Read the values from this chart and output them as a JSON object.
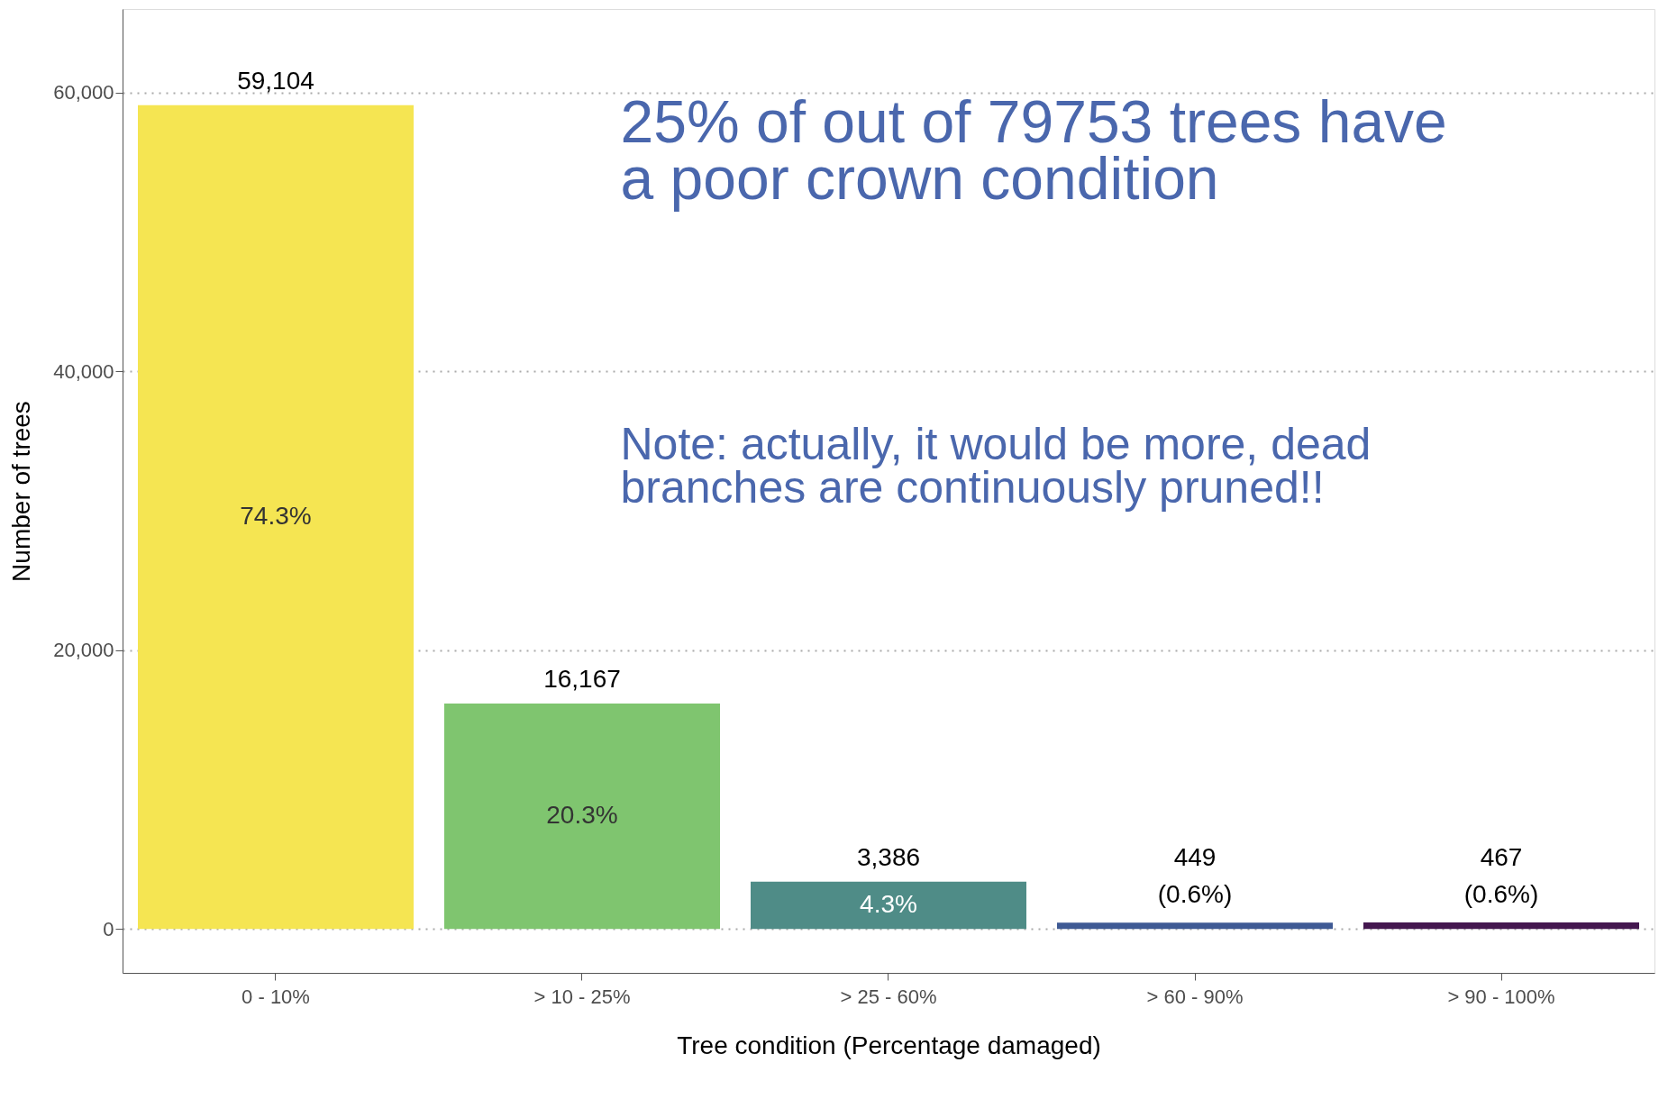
{
  "chart_data": {
    "type": "bar",
    "xlabel": "Tree condition (Percentage damaged)",
    "ylabel": "Number of trees",
    "categories": [
      "0 - 10%",
      "> 10 - 25%",
      "> 25 - 60%",
      "> 60 - 90%",
      "> 90 - 100%"
    ],
    "values": [
      59104,
      16167,
      3386,
      449,
      467
    ],
    "colors": [
      "#f5e552",
      "#7fc56f",
      "#4f8c87",
      "#3f5a94",
      "#44174f"
    ],
    "value_labels": [
      "59,104",
      "16,167",
      "3,386",
      "449",
      "467"
    ],
    "ylim": [
      -3150,
      66000
    ],
    "yticks": [
      {
        "value": 0,
        "label": "0"
      },
      {
        "value": 20000,
        "label": "20,000"
      },
      {
        "value": 40000,
        "label": "40,000"
      },
      {
        "value": 60000,
        "label": "60,000"
      }
    ],
    "grid": "y",
    "annotations": [
      "74.3%",
      "20.3%",
      "4.3%",
      "(0.6%)",
      "(0.6%)",
      "25% of out of 79753 trees have\na poor crown condition",
      "Note: actually, it would be more, dead\nbranches are continuously pruned!!"
    ]
  }
}
